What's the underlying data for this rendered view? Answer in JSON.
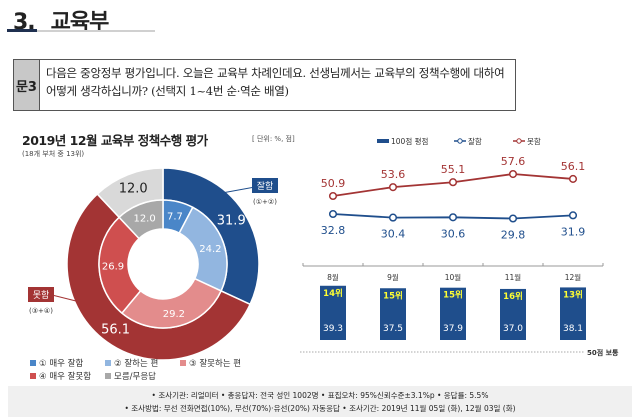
{
  "section": {
    "number": "3.",
    "title": "교육부"
  },
  "question": {
    "label": "문3",
    "text": "다음은 중앙정부 평가입니다. 오늘은 교육부 차례인데요. 선생님께서는 교육부의 정책수행에 대하여 어떻게 생각하십니까? (선택지 1~4번 순·역순 배열)"
  },
  "chart_data": [
    {
      "type": "pie",
      "variant": "nested-donut",
      "title": "2019년 12월 교육부 정책수행 평가",
      "subtitle": "(18개 부처 중 13위)",
      "unit": "[ 단위: %, 점]",
      "outer": [
        {
          "name": "잘함",
          "note": "(①+②)",
          "value": 31.9,
          "color": "#1f4e8c"
        },
        {
          "name": "못함",
          "note": "(③+④)",
          "value": 56.1,
          "color": "#a33434"
        },
        {
          "name": "모름/무응답",
          "value": 12.0,
          "color": "#d9d9d9"
        }
      ],
      "inner": [
        {
          "name": "① 매우 잘함",
          "value": 7.7,
          "color": "#4a86c8"
        },
        {
          "name": "② 잘하는 편",
          "value": 24.2,
          "color": "#92b6e0"
        },
        {
          "name": "③ 잘못하는 편",
          "value": 29.2,
          "color": "#e38c8c"
        },
        {
          "name": "④ 매우 잘못함",
          "value": 26.9,
          "color": "#cf4f4f"
        },
        {
          "name": "모름/무응답",
          "value": 12.0,
          "color": "#a8a8a8"
        }
      ],
      "legend": [
        "① 매우 잘함",
        "② 잘하는 편",
        "③ 잘못하는 편",
        "④ 매우 잘못함",
        "모름/무응답"
      ]
    },
    {
      "type": "line",
      "categories": [
        "8월",
        "9월",
        "10월",
        "11월",
        "12월"
      ],
      "series": [
        {
          "name": "잘함",
          "values": [
            32.8,
            30.4,
            30.6,
            29.8,
            31.9
          ],
          "color": "#1f4e8c"
        },
        {
          "name": "못함",
          "values": [
            50.9,
            53.6,
            55.1,
            57.6,
            56.1
          ],
          "color": "#a33434"
        }
      ],
      "bars": {
        "name": "100점 평점",
        "values": [
          39.3,
          37.5,
          37.9,
          37.0,
          38.1
        ],
        "ranks": [
          "14위",
          "15위",
          "15위",
          "16위",
          "13위"
        ],
        "color": "#1f4e8c",
        "rank_color": "#ffff33"
      },
      "reference": {
        "value": 50,
        "label": "50점 보통"
      }
    }
  ],
  "footer": {
    "line1": "• 조사기관: 리얼미터   • 총응답자: 전국 성인 1002명   • 표집오차: 95%신뢰수준±3.1%p   • 응답률: 5.5%",
    "line2": "• 조사방법: 무선 전화면접(10%), 무선(70%)·유선(20%) 자동응답  • 조사기간: 2019년 11월 05일 (화), 12월 03일 (화)"
  }
}
